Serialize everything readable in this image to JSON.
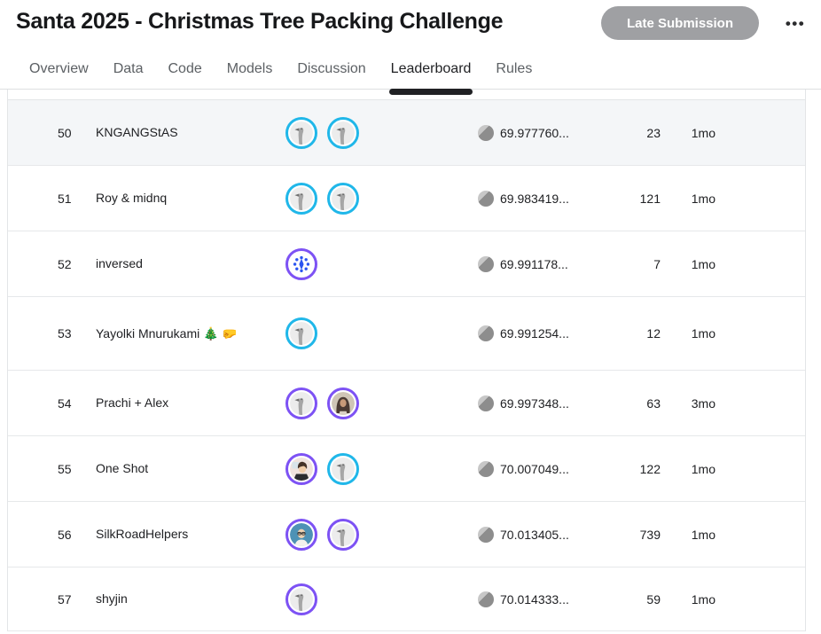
{
  "header": {
    "title": "Santa 2025 - Christmas Tree Packing Challenge",
    "late_submission_label": "Late Submission",
    "more_label": "•••"
  },
  "tabs": [
    {
      "label": "Overview",
      "active": false
    },
    {
      "label": "Data",
      "active": false
    },
    {
      "label": "Code",
      "active": false
    },
    {
      "label": "Models",
      "active": false
    },
    {
      "label": "Discussion",
      "active": false
    },
    {
      "label": "Leaderboard",
      "active": true
    },
    {
      "label": "Rules",
      "active": false
    }
  ],
  "colors": {
    "ring_blue": "#20b7e9",
    "ring_purple": "#7d52f4",
    "late_submission_bg": "#9fa0a3",
    "active_tab_indicator": "#202124",
    "highlighted_row_bg": "#f4f6f8"
  },
  "leaderboard": {
    "rows": [
      {
        "rank": "50",
        "team": "KNGANGStAS",
        "avatars": [
          {
            "kind": "goose",
            "ring": "#20b7e9"
          },
          {
            "kind": "goose",
            "ring": "#20b7e9"
          }
        ],
        "score": "69.977760...",
        "entries": "23",
        "last": "1mo"
      },
      {
        "rank": "51",
        "team": "Roy & midnq",
        "avatars": [
          {
            "kind": "goose",
            "ring": "#20b7e9"
          },
          {
            "kind": "goose",
            "ring": "#20b7e9"
          }
        ],
        "score": "69.983419...",
        "entries": "121",
        "last": "1mo"
      },
      {
        "rank": "52",
        "team": "inversed",
        "avatars": [
          {
            "kind": "snowflake",
            "ring": "#7d52f4"
          }
        ],
        "score": "69.991178...",
        "entries": "7",
        "last": "1mo"
      },
      {
        "rank": "53",
        "team": "Yayolki Mnurukami 🎄 🤛",
        "avatars": [
          {
            "kind": "goose",
            "ring": "#20b7e9"
          }
        ],
        "score": "69.991254...",
        "entries": "12",
        "last": "1mo"
      },
      {
        "rank": "54",
        "team": "Prachi + Alex",
        "avatars": [
          {
            "kind": "goose",
            "ring": "#7d52f4"
          },
          {
            "kind": "girl-photo",
            "ring": "#7d52f4"
          }
        ],
        "score": "69.997348...",
        "entries": "63",
        "last": "3mo"
      },
      {
        "rank": "55",
        "team": "One Shot",
        "avatars": [
          {
            "kind": "anime-boy",
            "ring": "#7d52f4"
          },
          {
            "kind": "goose",
            "ring": "#20b7e9"
          }
        ],
        "score": "70.007049...",
        "entries": "122",
        "last": "1mo"
      },
      {
        "rank": "56",
        "team": "SilkRoadHelpers",
        "avatars": [
          {
            "kind": "man-glasses",
            "ring": "#7d52f4"
          },
          {
            "kind": "goose",
            "ring": "#7d52f4"
          }
        ],
        "score": "70.013405...",
        "entries": "739",
        "last": "1mo"
      },
      {
        "rank": "57",
        "team": "shyjin",
        "avatars": [
          {
            "kind": "goose",
            "ring": "#7d52f4"
          }
        ],
        "score": "70.014333...",
        "entries": "59",
        "last": "1mo"
      }
    ]
  }
}
